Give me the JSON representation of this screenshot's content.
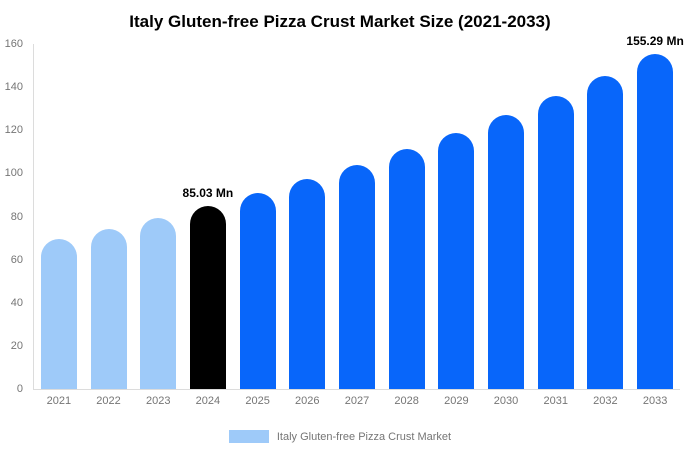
{
  "chart_data": {
    "type": "bar",
    "title": "Italy Gluten-free Pizza Crust Market Size (2021-2033)",
    "categories": [
      "2021",
      "2022",
      "2023",
      "2024",
      "2025",
      "2026",
      "2027",
      "2028",
      "2029",
      "2030",
      "2031",
      "2032",
      "2033"
    ],
    "values": [
      69.6,
      74.4,
      79.5,
      85.03,
      90.9,
      97.2,
      103.9,
      111.1,
      118.8,
      127.1,
      135.8,
      145.2,
      155.29
    ],
    "point_labels": [
      "",
      "",
      "",
      "85.03 Mn",
      "",
      "",
      "",
      "",
      "",
      "",
      "",
      "",
      "155.29 Mn"
    ],
    "bar_colors": [
      "#9ECAF9",
      "#9ECAF9",
      "#9ECAF9",
      "#000000",
      "#0866FA",
      "#0866FA",
      "#0866FA",
      "#0866FA",
      "#0866FA",
      "#0866FA",
      "#0866FA",
      "#0866FA",
      "#0866FA"
    ],
    "ylim": [
      0,
      160
    ],
    "yticks": [
      0,
      20,
      40,
      60,
      80,
      100,
      120,
      140,
      160
    ],
    "grid": false,
    "xlabel": "",
    "ylabel": "",
    "legend": {
      "position": "bottom",
      "items": [
        {
          "label": "Italy Gluten-free Pizza Crust Market",
          "color": "#9ECAF9"
        }
      ]
    },
    "palette": {
      "historical": "#9ECAF9",
      "highlight": "#000000",
      "forecast": "#0866FA",
      "axis_line": "#DCDCDC",
      "tick_text": "#757575",
      "title_text": "#000000"
    }
  }
}
